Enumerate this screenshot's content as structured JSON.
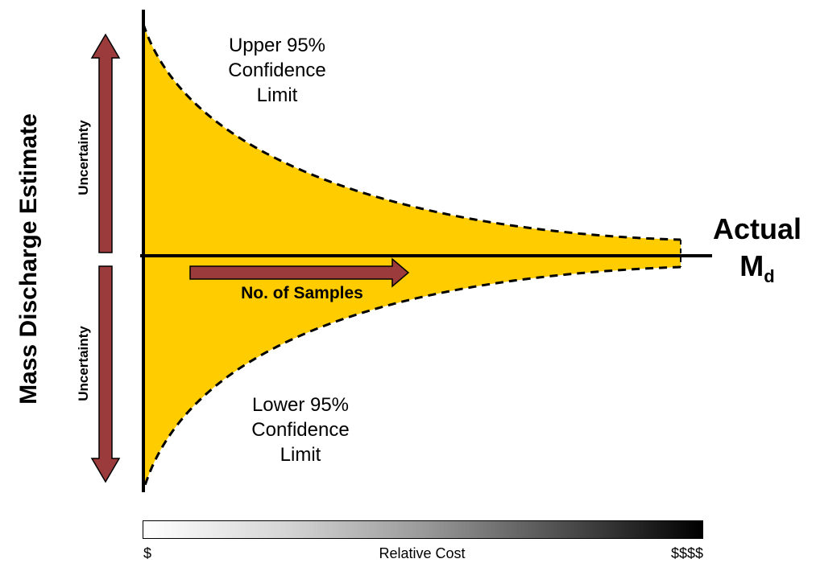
{
  "diagram": {
    "y_axis_title": "Mass Discharge Estimate",
    "uncertainty_upper_label": "Uncertainty",
    "uncertainty_lower_label": "Uncertainty",
    "upper_limit": {
      "line1": "Upper 95%",
      "line2": "Confidence",
      "line3": "Limit"
    },
    "lower_limit": {
      "line1": "Lower 95%",
      "line2": "Confidence",
      "line3": "Limit"
    },
    "actual": {
      "line1": "Actual",
      "md_main": "M",
      "md_sub": "d"
    },
    "samples_arrow_label": "No. of Samples",
    "cost_scale": {
      "left": "$",
      "center": "Relative Cost",
      "right": "$$$$"
    }
  },
  "colors": {
    "band_fill": "#ffcc00",
    "arrow_fill": "#9b3b3b",
    "axis": "#000000"
  }
}
